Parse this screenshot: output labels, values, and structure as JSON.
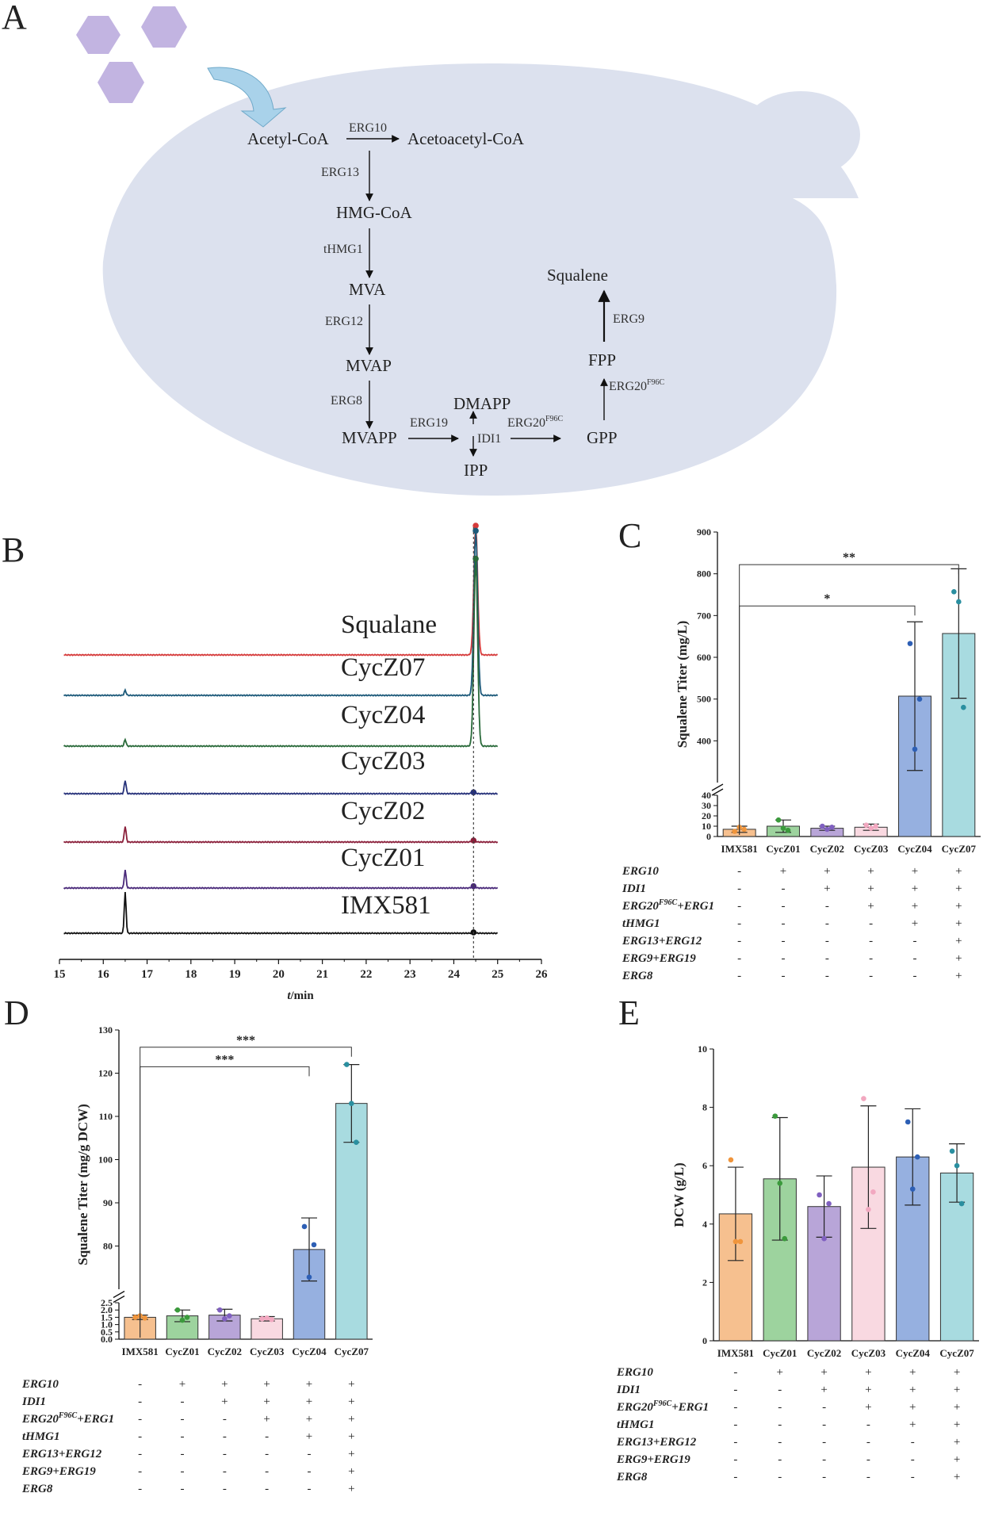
{
  "panels": {
    "a": "A",
    "b": "B",
    "c": "C",
    "d": "D",
    "e": "E"
  },
  "pathway": {
    "metabolites": {
      "acetyl_coa": "Acetyl-CoA",
      "acetoacetyl_coa": "Acetoacetyl-CoA",
      "hmg_coa": "HMG-CoA",
      "mva": "MVA",
      "mvap": "MVAP",
      "mvapp": "MVAPP",
      "dmapp": "DMAPP",
      "ipp": "IPP",
      "gpp": "GPP",
      "fpp": "FPP",
      "squalene": "Squalene"
    },
    "enzymes": {
      "erg10": "ERG10",
      "erg13": "ERG13",
      "thmg1": "tHMG1",
      "erg12": "ERG12",
      "erg8": "ERG8",
      "erg19": "ERG19",
      "idi1": "IDI1",
      "erg20": "ERG20",
      "erg20_sup": "F96C",
      "erg20b": "ERG20",
      "erg20b_sup": "F96C",
      "erg9": "ERG9"
    },
    "colors": {
      "cell": "#dce1ee",
      "hexagon": "#b7a7dc",
      "arrow": "#a9d2ea"
    }
  },
  "categories": [
    "IMX581",
    "CycZ01",
    "CycZ02",
    "CycZ03",
    "CycZ04",
    "CycZ07"
  ],
  "bar_colors": [
    "#f6c08f",
    "#9dd39e",
    "#b8a5d8",
    "#f9d9e1",
    "#96b0e0",
    "#a8dbe0"
  ],
  "dot_colors": [
    "#f0953c",
    "#3b9a3c",
    "#8060c0",
    "#f2a8c0",
    "#2d5fb5",
    "#2a8fa0"
  ],
  "genotype": {
    "genes": [
      "ERG10",
      "IDI1",
      "ERG20F96C+ERG1",
      "tHMG1",
      "ERG13+ERG12",
      "ERG9+ERG19",
      "ERG8"
    ],
    "gene_labels": [
      {
        "main": "ERG10",
        "sup": ""
      },
      {
        "main": "IDI1",
        "sup": ""
      },
      {
        "main": "ERG20",
        "sup": "F96C",
        "rest": "+ERG1"
      },
      {
        "main": "tHMG1",
        "sup": ""
      },
      {
        "main": "ERG13+ERG12",
        "sup": ""
      },
      {
        "main": "ERG9+ERG19",
        "sup": ""
      },
      {
        "main": "ERG8",
        "sup": ""
      }
    ],
    "matrix": [
      [
        "-",
        "+",
        "+",
        "+",
        "+",
        "+"
      ],
      [
        "-",
        "-",
        "+",
        "+",
        "+",
        "+"
      ],
      [
        "-",
        "-",
        "-",
        "+",
        "+",
        "+"
      ],
      [
        "-",
        "-",
        "-",
        "-",
        "+",
        "+"
      ],
      [
        "-",
        "-",
        "-",
        "-",
        "-",
        "+"
      ],
      [
        "-",
        "-",
        "-",
        "-",
        "-",
        "+"
      ],
      [
        "-",
        "-",
        "-",
        "-",
        "-",
        "+"
      ]
    ]
  },
  "chart_data": [
    {
      "panel": "B",
      "type": "line",
      "title": "",
      "xlabel": "t/min",
      "xlabel_italic": "t",
      "xlabel_rest": "/min",
      "xlim": [
        15,
        26
      ],
      "xticks": [
        15,
        16,
        17,
        18,
        19,
        20,
        21,
        22,
        23,
        24,
        25,
        26
      ],
      "reference_line_x": 24.45,
      "series": [
        {
          "name": "Squalane",
          "color": "#d63b3b",
          "small_peak": null,
          "main_peak": {
            "x": 24.5,
            "height": 1.0
          }
        },
        {
          "name": "CycZ07",
          "color": "#1d5a7a",
          "small_peak": {
            "x": 16.5,
            "height": 0.03
          },
          "main_peak": {
            "x": 24.5,
            "height": 0.97
          }
        },
        {
          "name": "CycZ04",
          "color": "#2a6a3a",
          "small_peak": {
            "x": 16.5,
            "height": 0.03
          },
          "main_peak": {
            "x": 24.5,
            "height": 0.85
          }
        },
        {
          "name": "CycZ03",
          "color": "#27327a",
          "small_peak": {
            "x": 16.5,
            "height": 0.05
          },
          "main_peak": {
            "x": 24.45,
            "height": 0.005
          }
        },
        {
          "name": "CycZ02",
          "color": "#8a1f3a",
          "small_peak": {
            "x": 16.5,
            "height": 0.05
          },
          "main_peak": {
            "x": 24.45,
            "height": 0.005
          }
        },
        {
          "name": "CycZ01",
          "color": "#4a2a7a",
          "small_peak": {
            "x": 16.5,
            "height": 0.05
          },
          "main_peak": {
            "x": 24.45,
            "height": 0.005
          }
        },
        {
          "name": "IMX581",
          "color": "#111111",
          "small_peak": {
            "x": 16.5,
            "height": 0.1
          },
          "main_peak": {
            "x": 24.45,
            "height": 0.002
          }
        }
      ]
    },
    {
      "panel": "C",
      "type": "bar",
      "ylabel": "Squalene Titer (mg/L)",
      "categories": [
        "IMX581",
        "CycZ01",
        "CycZ02",
        "CycZ03",
        "CycZ04",
        "CycZ07"
      ],
      "values": [
        7,
        10,
        8,
        9,
        507,
        657
      ],
      "errors": [
        3,
        6,
        2,
        3,
        178,
        155
      ],
      "points": [
        [
          5,
          9,
          7
        ],
        [
          16,
          8,
          6
        ],
        [
          10,
          7,
          9
        ],
        [
          11,
          8,
          10
        ],
        [
          633,
          380,
          500
        ],
        [
          757,
          733,
          480
        ]
      ],
      "axis_break": {
        "lower": [
          0,
          40
        ],
        "upper": [
          300,
          900
        ]
      },
      "yticks_lower": [
        0,
        10,
        20,
        30,
        40
      ],
      "yticks_upper": [
        400,
        500,
        600,
        700,
        800,
        900
      ],
      "significance": [
        {
          "from": 0,
          "to": 4,
          "label": "*",
          "y": 723
        },
        {
          "from": 0,
          "to": 5,
          "label": "**",
          "y": 822
        }
      ]
    },
    {
      "panel": "D",
      "type": "bar",
      "ylabel": "Squalene Titer (mg/g DCW)",
      "categories": [
        "IMX581",
        "CycZ01",
        "CycZ02",
        "CycZ03",
        "CycZ04",
        "CycZ07"
      ],
      "values": [
        1.5,
        1.6,
        1.65,
        1.4,
        79.2,
        113
      ],
      "errors": [
        0.15,
        0.4,
        0.4,
        0.15,
        7.3,
        9.0
      ],
      "points": [
        [
          1.5,
          1.6,
          1.45
        ],
        [
          2.0,
          1.3,
          1.5
        ],
        [
          2.0,
          1.4,
          1.6
        ],
        [
          1.4,
          1.45,
          1.35
        ],
        [
          84.5,
          72.8,
          80.3
        ],
        [
          122,
          113,
          104
        ]
      ],
      "axis_break": {
        "lower": [
          0,
          2.5
        ],
        "upper": [
          70,
          130
        ]
      },
      "yticks_lower": [
        0.0,
        0.5,
        1.0,
        1.5,
        2.0,
        2.5
      ],
      "yticks_upper": [
        80,
        90,
        100,
        110,
        120,
        130
      ],
      "significance": [
        {
          "from": 0,
          "to": 4,
          "label": "***",
          "y": 121.5
        },
        {
          "from": 0,
          "to": 5,
          "label": "***",
          "y": 126
        }
      ]
    },
    {
      "panel": "E",
      "type": "bar",
      "ylabel": "DCW (g/L)",
      "categories": [
        "IMX581",
        "CycZ01",
        "CycZ02",
        "CycZ03",
        "CycZ04",
        "CycZ07"
      ],
      "values": [
        4.35,
        5.55,
        4.6,
        5.95,
        6.3,
        5.75
      ],
      "errors": [
        1.6,
        2.1,
        1.05,
        2.1,
        1.65,
        1.0
      ],
      "points": [
        [
          6.2,
          3.4,
          3.4
        ],
        [
          7.7,
          5.4,
          3.5
        ],
        [
          5.0,
          3.5,
          4.7
        ],
        [
          8.3,
          4.5,
          5.1
        ],
        [
          7.5,
          5.2,
          6.3
        ],
        [
          6.5,
          6.0,
          4.7
        ]
      ],
      "ylim": [
        0,
        10
      ],
      "yticks": [
        0,
        2,
        4,
        6,
        8,
        10
      ]
    }
  ]
}
